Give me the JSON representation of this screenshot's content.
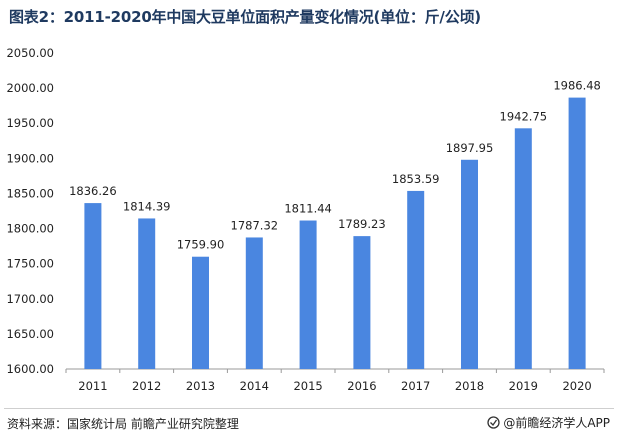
{
  "title": "图表2：2011-2020年中国大豆单位面积产量变化情况(单位：斤/公顷)",
  "source_label": "资料来源：国家统计局 前瞻产业研究院整理",
  "brand_label": "@前瞻经济学人APP",
  "colors": {
    "bar": "#4a86e0",
    "title": "#1f3a60",
    "axis": "#9a9a9a",
    "grid": "#d9d9d9"
  },
  "chart_data": {
    "type": "bar",
    "title": "图表2：2011-2020年中国大豆单位面积产量变化情况(单位：斤/公顷)",
    "xlabel": "",
    "ylabel": "",
    "categories": [
      "2011",
      "2012",
      "2013",
      "2014",
      "2015",
      "2016",
      "2017",
      "2018",
      "2019",
      "2020"
    ],
    "values": [
      1836.26,
      1814.39,
      1759.9,
      1787.32,
      1811.44,
      1789.23,
      1853.59,
      1897.95,
      1942.75,
      1986.48
    ],
    "value_labels": [
      "1836.26",
      "1814.39",
      "1759.90",
      "1787.32",
      "1811.44",
      "1789.23",
      "1853.59",
      "1897.95",
      "1942.75",
      "1986.48"
    ],
    "ylim": [
      1600,
      2050
    ],
    "yticks": [
      1600,
      1650,
      1700,
      1750,
      1800,
      1850,
      1900,
      1950,
      2000,
      2050
    ],
    "ytick_labels": [
      "1600.00",
      "1650.00",
      "1700.00",
      "1750.00",
      "1800.00",
      "1850.00",
      "1900.00",
      "1950.00",
      "2000.00",
      "2050.00"
    ],
    "grid": false,
    "legend": "none"
  }
}
